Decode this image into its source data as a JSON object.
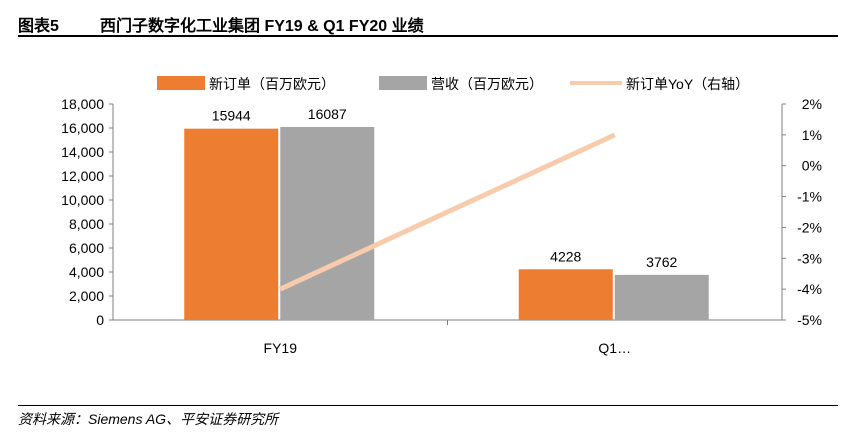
{
  "header": {
    "figure_label": "图表5",
    "title": "西门子数字化工业集团 FY19 & Q1 FY20 业绩"
  },
  "footer": {
    "source": "资料来源：Siemens AG、平安证券研究所"
  },
  "colors": {
    "orders": "#ED7D31",
    "revenue": "#A5A5A5",
    "yoy": "#F8CBAD"
  },
  "chart_data": {
    "type": "bar",
    "categories": [
      "FY19",
      "Q1…"
    ],
    "series": [
      {
        "name": "新订单（百万欧元）",
        "kind": "bar",
        "axis": "left",
        "values": [
          15944,
          4228
        ],
        "labels": [
          "15944",
          "4228"
        ]
      },
      {
        "name": "营收（百万欧元）",
        "kind": "bar",
        "axis": "left",
        "values": [
          16087,
          3762
        ],
        "labels": [
          "16087",
          "3762"
        ]
      },
      {
        "name": "新订单YoY（右轴）",
        "kind": "line",
        "axis": "right",
        "values": [
          -4,
          1
        ]
      }
    ],
    "y_left": {
      "min": 0,
      "max": 18000,
      "ticks": [
        "0",
        "2,000",
        "4,000",
        "6,000",
        "8,000",
        "10,000",
        "12,000",
        "14,000",
        "16,000",
        "18,000"
      ]
    },
    "y_right": {
      "min": -5,
      "max": 2,
      "ticks": [
        "-5%",
        "-4%",
        "-3%",
        "-2%",
        "-1%",
        "0%",
        "1%",
        "2%"
      ]
    },
    "legend_position": "top",
    "grid": false
  }
}
